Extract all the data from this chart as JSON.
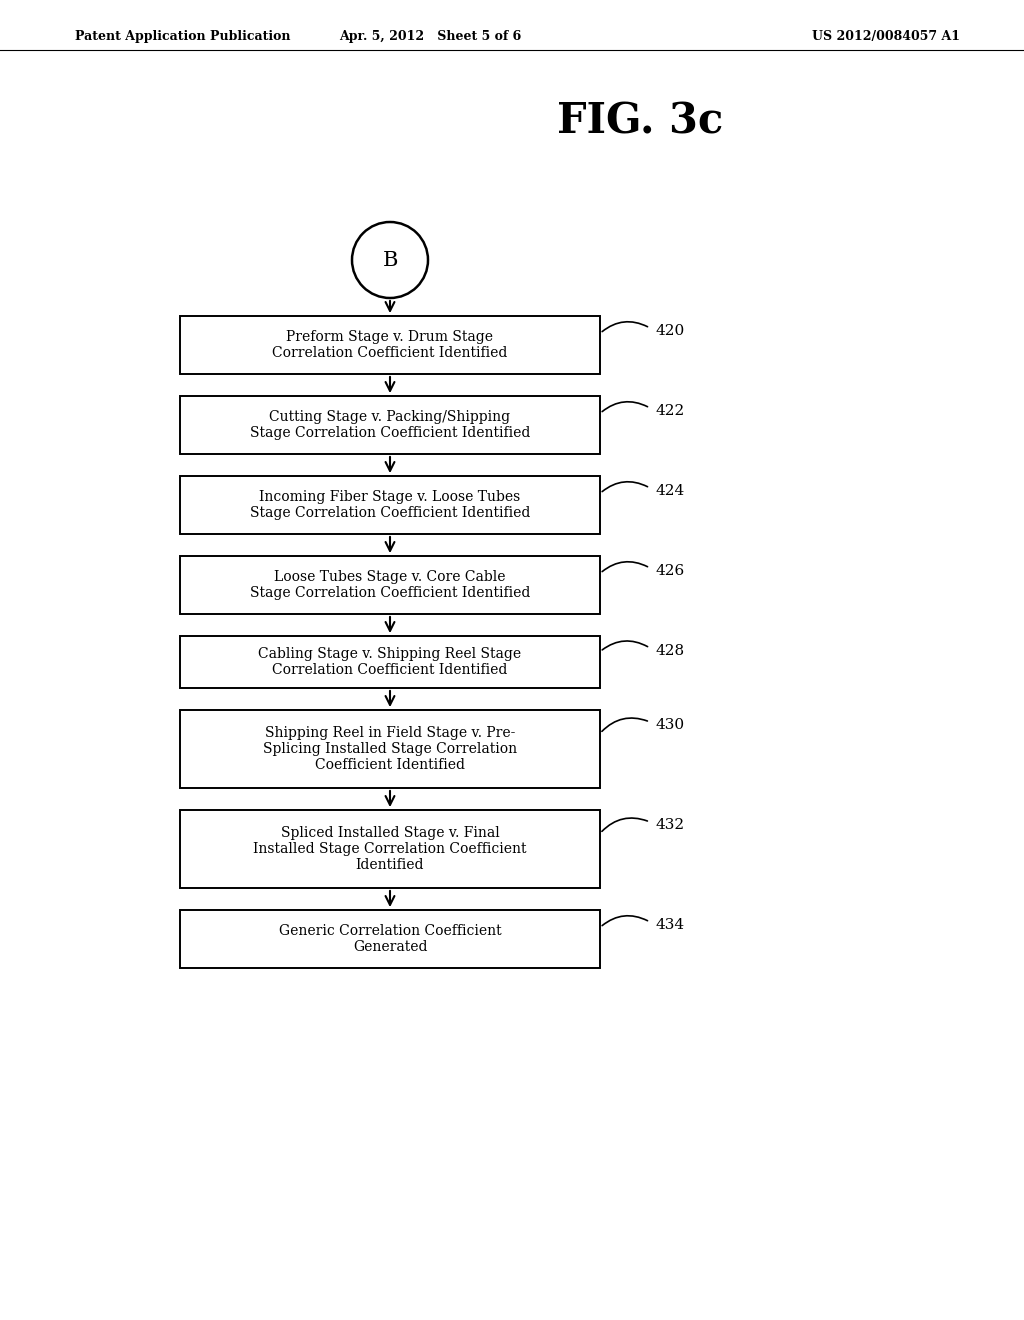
{
  "title": "FIG. 3c",
  "header_left": "Patent Application Publication",
  "header_center": "Apr. 5, 2012   Sheet 5 of 6",
  "header_right": "US 2012/0084057 A1",
  "circle_label": "B",
  "boxes": [
    {
      "label": "Preform Stage v. Drum Stage\nCorrelation Coefficient Identified",
      "ref": "420",
      "lines": 2
    },
    {
      "label": "Cutting Stage v. Packing/Shipping\nStage Correlation Coefficient Identified",
      "ref": "422",
      "lines": 2
    },
    {
      "label": "Incoming Fiber Stage v. Loose Tubes\nStage Correlation Coefficient Identified",
      "ref": "424",
      "lines": 2
    },
    {
      "label": "Loose Tubes Stage v. Core Cable\nStage Correlation Coefficient Identified",
      "ref": "426",
      "lines": 2
    },
    {
      "label": "Cabling Stage v. Shipping Reel Stage\nCorrelation Coefficient Identified",
      "ref": "428",
      "lines": 2
    },
    {
      "label": "Shipping Reel in Field Stage v. Pre-\nSplicing Installed Stage Correlation\nCoefficient Identified",
      "ref": "430",
      "lines": 3
    },
    {
      "label": "Spliced Installed Stage v. Final\nInstalled Stage Correlation Coefficient\nIdentified",
      "ref": "432",
      "lines": 3
    },
    {
      "label": "Generic Correlation Coefficient\nGenerated",
      "ref": "434",
      "lines": 2
    }
  ],
  "bg_color": "#ffffff",
  "box_edge_color": "#000000",
  "box_face_color": "#ffffff",
  "text_color": "#000000",
  "arrow_color": "#000000"
}
